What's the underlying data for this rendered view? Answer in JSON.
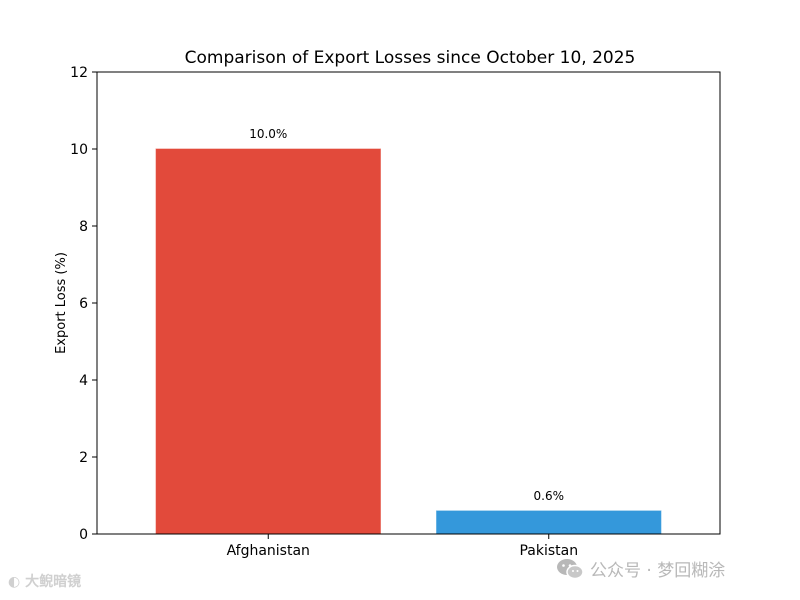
{
  "chart_data": {
    "type": "bar",
    "title": "Comparison of Export Losses since October 10, 2025",
    "xlabel": "",
    "ylabel": "Export Loss (%)",
    "categories": [
      "Afghanistan",
      "Pakistan"
    ],
    "values": [
      10.0,
      0.6
    ],
    "data_labels": [
      "10.0%",
      "0.6%"
    ],
    "colors": [
      "#e24a3b",
      "#3498db"
    ],
    "ylim": [
      0,
      12
    ],
    "yticks": [
      0,
      2,
      4,
      6,
      8,
      10,
      12
    ],
    "grid": false,
    "legend": false
  },
  "watermarks": {
    "left": "大鲵暗镜",
    "right": "公众号 · 梦回糊涂",
    "left_icon": "camera-logo-icon",
    "right_icon": "wechat-icon"
  }
}
